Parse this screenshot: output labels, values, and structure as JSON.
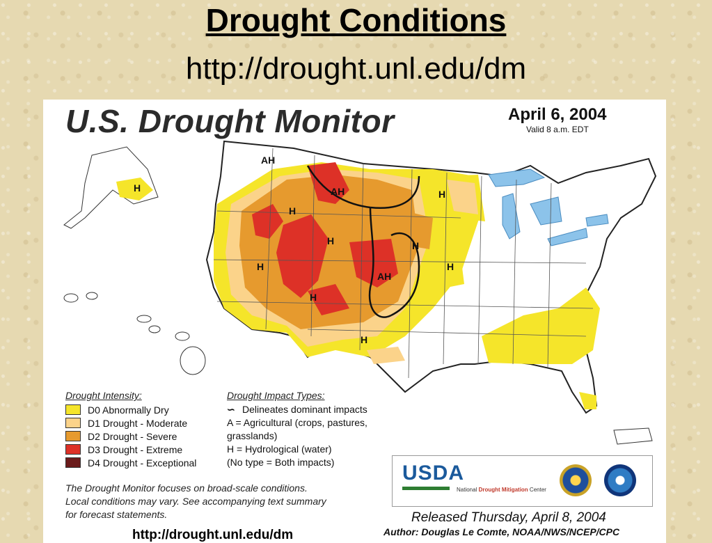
{
  "slide": {
    "title": "Drought Conditions",
    "url": "http://drought.unl.edu/dm",
    "footer_url": "http://drought.unl.edu/dm"
  },
  "map": {
    "title": "U.S. Drought Monitor",
    "date": "April 6, 2004",
    "valid": "Valid 8 a.m. EDT",
    "labels": [
      "AH",
      "H",
      "AH",
      "H",
      "H",
      "H",
      "H",
      "H",
      "H",
      "AH",
      "H",
      "H"
    ],
    "colors": {
      "D0": "#f5e52a",
      "D1": "#fbd38a",
      "D2": "#e69a2e",
      "D3": "#dd3127",
      "D4": "#6b1b1b",
      "water": "#8cc3ea",
      "boundary": "#222222"
    }
  },
  "legend": {
    "intensity_heading": "Drought Intensity:",
    "intensity": [
      {
        "label": "D0 Abnormally Dry",
        "color": "#f5e52a"
      },
      {
        "label": "D1 Drought - Moderate",
        "color": "#fbd38a"
      },
      {
        "label": "D2 Drought - Severe",
        "color": "#e69a2e"
      },
      {
        "label": "D3 Drought - Extreme",
        "color": "#dd3127"
      },
      {
        "label": "D4 Drought - Exceptional",
        "color": "#6b1b1b"
      }
    ],
    "impact_heading": "Drought Impact Types:",
    "impact_lines": [
      "Delineates dominant impacts",
      "A = Agricultural (crops, pastures,",
      "grasslands)",
      "H = Hydrological (water)",
      "(No type = Both impacts)"
    ]
  },
  "note": [
    "The Drought Monitor focuses on broad-scale conditions.",
    "Local conditions may vary.  See accompanying text summary",
    "for forecast statements."
  ],
  "logos": {
    "usda": "USDA",
    "ndmc_prefix": "National",
    "ndmc_main": "Drought Mitigation",
    "ndmc_suffix": "Center",
    "noaa": "NOAA"
  },
  "released": "Released Thursday, April 8, 2004",
  "author": "Author: Douglas Le Comte, NOAA/NWS/NCEP/CPC"
}
